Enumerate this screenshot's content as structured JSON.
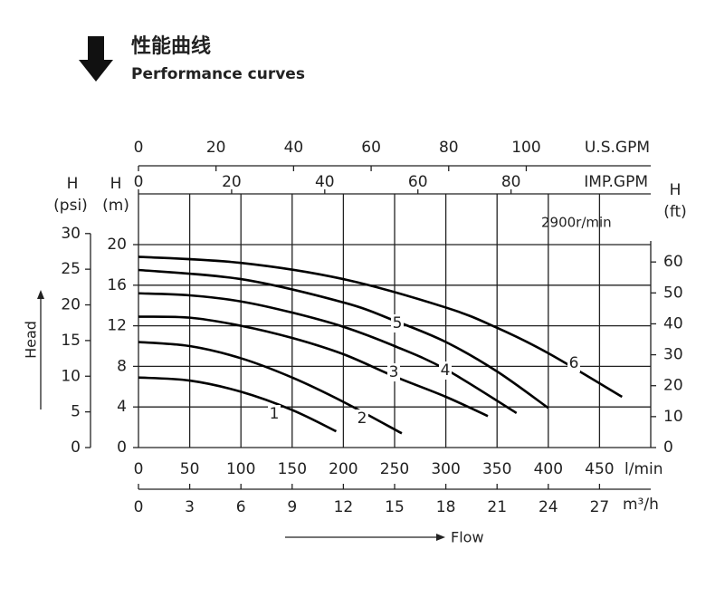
{
  "chart_data": {
    "type": "line",
    "title": "性能曲线",
    "subtitle": "Performance curves",
    "annotation": "2900r/min",
    "y_label": "Head",
    "x_label": "Flow",
    "head_symbol": "H",
    "x_unit": "l/min",
    "xlim": [
      0,
      500
    ],
    "xticks": [
      0,
      50,
      100,
      150,
      200,
      250,
      300,
      350,
      400,
      450
    ],
    "y_unit": "(m)",
    "ylim": [
      0,
      25
    ],
    "yticks": [
      0,
      4,
      8,
      12,
      16,
      20
    ],
    "y2_unit": "(ft)",
    "y2lim": [
      0,
      82.02
    ],
    "y2ticks": [
      0,
      10,
      20,
      30,
      40,
      50,
      60
    ],
    "y3_unit": "(psi)",
    "y3lim": [
      0,
      35.56
    ],
    "y3ticks": [
      0,
      5,
      10,
      15,
      20,
      25,
      30
    ],
    "x2_unit": "IMP.GPM",
    "x2lim": [
      0,
      110
    ],
    "x2ticks": [
      0,
      20,
      40,
      60,
      80
    ],
    "x3_unit": "U.S.GPM",
    "x3lim": [
      0,
      132.1
    ],
    "x3ticks": [
      0,
      20,
      40,
      60,
      80,
      100
    ],
    "x4_unit": "m³/h",
    "x4lim": [
      0,
      30
    ],
    "x4ticks": [
      0,
      3,
      6,
      9,
      12,
      15,
      18,
      21,
      24,
      27
    ],
    "grid": true,
    "color": "#000000",
    "series": [
      {
        "name": "1",
        "x": [
          0,
          50,
          100,
          150,
          193
        ],
        "values": [
          6.9,
          6.6,
          5.5,
          3.7,
          1.6
        ]
      },
      {
        "name": "2",
        "x": [
          0,
          50,
          100,
          150,
          200,
          257
        ],
        "values": [
          10.4,
          10.0,
          8.8,
          6.9,
          4.5,
          1.4
        ]
      },
      {
        "name": "3",
        "x": [
          0,
          50,
          100,
          150,
          200,
          250,
          300,
          341
        ],
        "values": [
          12.9,
          12.8,
          12.0,
          10.8,
          9.2,
          7.0,
          5.0,
          3.1
        ]
      },
      {
        "name": "4",
        "x": [
          0,
          50,
          100,
          150,
          200,
          250,
          300,
          369
        ],
        "values": [
          15.2,
          15.0,
          14.4,
          13.3,
          11.9,
          10.0,
          7.7,
          3.4
        ]
      },
      {
        "name": "5",
        "x": [
          0,
          100,
          200,
          250,
          300,
          350,
          400
        ],
        "values": [
          17.5,
          16.6,
          14.3,
          12.5,
          10.4,
          7.5,
          3.9
        ]
      },
      {
        "name": "6",
        "x": [
          0,
          100,
          200,
          300,
          350,
          400,
          472
        ],
        "values": [
          18.8,
          18.2,
          16.6,
          13.8,
          11.8,
          9.3,
          5.0
        ]
      }
    ]
  }
}
